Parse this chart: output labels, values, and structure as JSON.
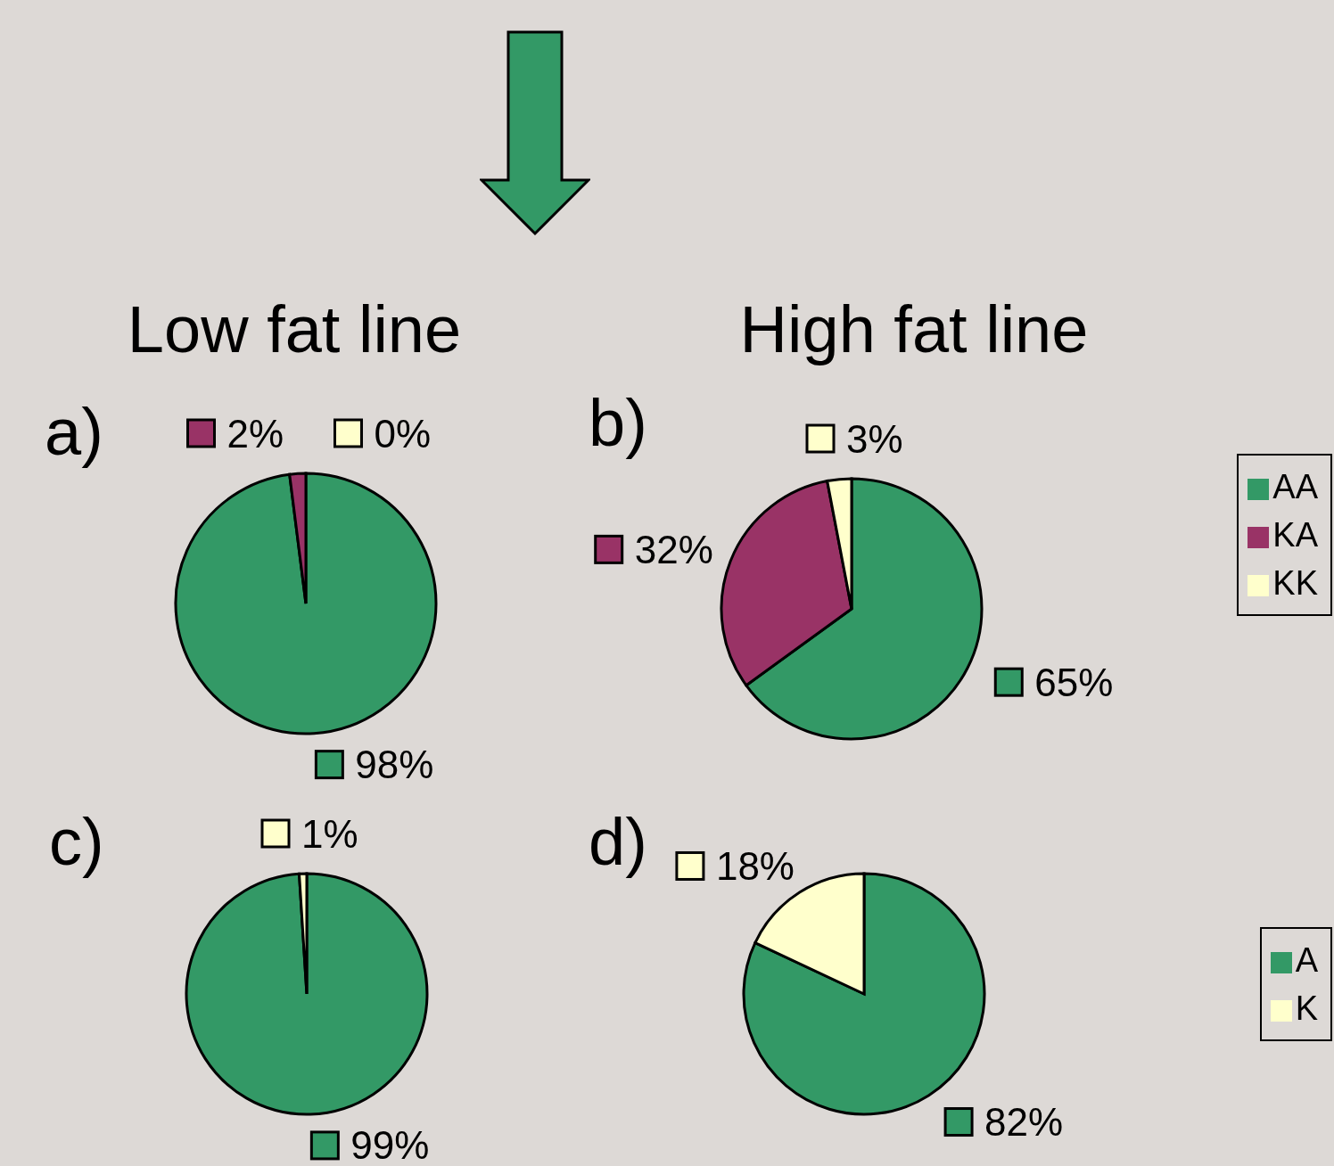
{
  "chart_data": [
    {
      "type": "pie",
      "title": "Low fat line",
      "annotations": [
        "a)"
      ],
      "categories": [
        null,
        null,
        null
      ],
      "values": [
        98,
        2,
        0
      ],
      "colors": [
        "#339966",
        "#993366",
        "#ffffcc"
      ],
      "value_labels": [
        "98%",
        "2%",
        "0%"
      ],
      "legend": false
    },
    {
      "type": "pie",
      "title": "High fat line",
      "annotations": [
        "b)"
      ],
      "categories": [
        "AA",
        "KA",
        "KK"
      ],
      "values": [
        65,
        32,
        3
      ],
      "colors": [
        "#339966",
        "#993366",
        "#ffffcc"
      ],
      "value_labels": [
        "65%",
        "32%",
        "3%"
      ],
      "legend": "right"
    },
    {
      "type": "pie",
      "annotations": [
        "c)"
      ],
      "categories": [
        null,
        null
      ],
      "values": [
        99,
        1
      ],
      "colors": [
        "#339966",
        "#ffffcc"
      ],
      "value_labels": [
        "99%",
        "1%"
      ],
      "legend": false
    },
    {
      "type": "pie",
      "annotations": [
        "d)"
      ],
      "categories": [
        "A",
        "K"
      ],
      "values": [
        82,
        18
      ],
      "colors": [
        "#339966",
        "#ffffcc"
      ],
      "value_labels": [
        "82%",
        "18%"
      ],
      "legend": "right"
    }
  ]
}
